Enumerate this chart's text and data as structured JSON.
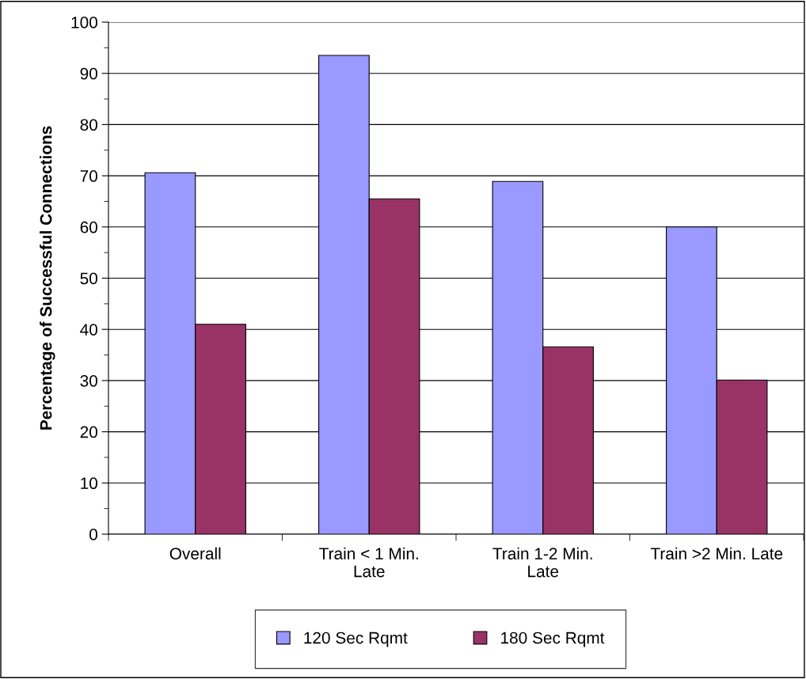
{
  "chart_data": {
    "type": "bar",
    "ylabel": "Percentage of Successful Connections",
    "categories": [
      "Overall",
      "Train < 1 Min.\nLate",
      "Train 1-2 Min.\nLate",
      "Train >2 Min. Late"
    ],
    "series": [
      {
        "name": "120 Sec Rqmt",
        "color": "#9999ff",
        "values": [
          70.6,
          93.5,
          68.9,
          60.0
        ]
      },
      {
        "name": "180 Sec Rqmt",
        "color": "#993366",
        "values": [
          41.0,
          65.5,
          36.6,
          30.1
        ]
      }
    ],
    "ylim": [
      0,
      100
    ],
    "yticks": [
      0,
      {
        "value": 5,
        "label": null
      },
      10,
      {
        "value": 15,
        "label": null
      },
      20,
      {
        "value": 25,
        "label": null
      },
      30,
      {
        "value": 35,
        "label": null
      },
      40,
      {
        "value": 45,
        "label": null
      },
      50,
      {
        "value": 55,
        "label": null
      },
      60,
      {
        "value": 65,
        "label": null
      },
      70,
      {
        "value": 75,
        "label": null
      },
      80,
      {
        "value": 85,
        "label": null
      },
      90,
      {
        "value": 95,
        "label": null
      },
      100
    ],
    "grid": "y",
    "legend": "bottom"
  }
}
